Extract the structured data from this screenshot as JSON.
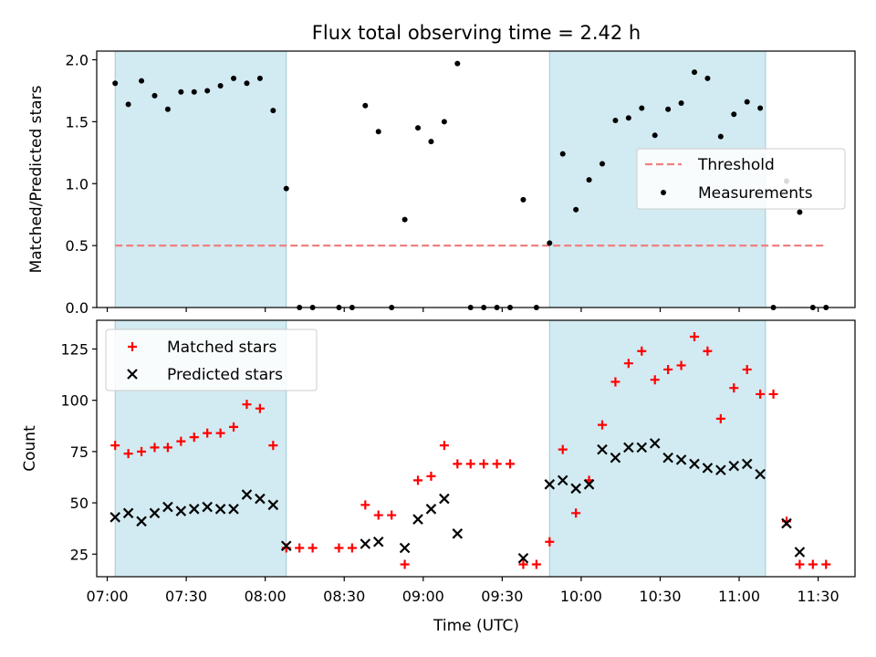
{
  "chart_data": {
    "title": "Flux total observing time = 2.42 h",
    "xlabel": "Time (UTC)",
    "x_ticks": [
      "07:00",
      "07:30",
      "08:00",
      "08:30",
      "09:00",
      "09:30",
      "10:00",
      "10:30",
      "11:00",
      "11:30"
    ],
    "x_range": [
      "06:56",
      "11:44"
    ],
    "shaded_intervals": [
      [
        "07:03",
        "08:08"
      ],
      [
        "09:48",
        "11:10"
      ]
    ],
    "shade_color": "#add8e6",
    "panels": [
      {
        "type": "scatter",
        "ylabel": "Matched/Predicted stars",
        "ylim": [
          0,
          2.07
        ],
        "y_ticks": [
          "0.0",
          "0.5",
          "1.0",
          "1.5",
          "2.0"
        ],
        "legend_position": "center-right",
        "threshold": {
          "name": "Threshold",
          "value": 0.5,
          "x_start": "07:03",
          "x_end": "11:33",
          "color": "#f08080"
        },
        "series": [
          {
            "name": "Measurements",
            "color": "#000000",
            "marker": "dot",
            "points": [
              [
                "07:03",
                1.81
              ],
              [
                "07:08",
                1.64
              ],
              [
                "07:13",
                1.83
              ],
              [
                "07:18",
                1.71
              ],
              [
                "07:23",
                1.6
              ],
              [
                "07:28",
                1.74
              ],
              [
                "07:33",
                1.74
              ],
              [
                "07:38",
                1.75
              ],
              [
                "07:43",
                1.79
              ],
              [
                "07:48",
                1.85
              ],
              [
                "07:53",
                1.81
              ],
              [
                "07:58",
                1.85
              ],
              [
                "08:03",
                1.59
              ],
              [
                "08:08",
                0.96
              ],
              [
                "08:13",
                0
              ],
              [
                "08:18",
                0
              ],
              [
                "08:28",
                0
              ],
              [
                "08:33",
                0
              ],
              [
                "08:38",
                1.63
              ],
              [
                "08:43",
                1.42
              ],
              [
                "08:48",
                0
              ],
              [
                "08:53",
                0.71
              ],
              [
                "08:58",
                1.45
              ],
              [
                "09:03",
                1.34
              ],
              [
                "09:08",
                1.5
              ],
              [
                "09:13",
                1.97
              ],
              [
                "09:18",
                0
              ],
              [
                "09:23",
                0
              ],
              [
                "09:28",
                0
              ],
              [
                "09:33",
                0
              ],
              [
                "09:38",
                0.87
              ],
              [
                "09:43",
                0
              ],
              [
                "09:48",
                0.52
              ],
              [
                "09:53",
                1.24
              ],
              [
                "09:58",
                0.79
              ],
              [
                "10:03",
                1.03
              ],
              [
                "10:08",
                1.16
              ],
              [
                "10:13",
                1.51
              ],
              [
                "10:18",
                1.53
              ],
              [
                "10:23",
                1.61
              ],
              [
                "10:28",
                1.39
              ],
              [
                "10:33",
                1.6
              ],
              [
                "10:38",
                1.65
              ],
              [
                "10:43",
                1.9
              ],
              [
                "10:48",
                1.85
              ],
              [
                "10:53",
                1.38
              ],
              [
                "10:58",
                1.56
              ],
              [
                "11:03",
                1.66
              ],
              [
                "11:08",
                1.61
              ],
              [
                "11:13",
                0
              ],
              [
                "11:18",
                1.02
              ],
              [
                "11:23",
                0.77
              ],
              [
                "11:28",
                0
              ],
              [
                "11:33",
                0
              ]
            ]
          }
        ]
      },
      {
        "type": "scatter",
        "ylabel": "Count",
        "ylim": [
          14,
          139
        ],
        "y_ticks": [
          "25",
          "50",
          "75",
          "100",
          "125"
        ],
        "legend_position": "upper-left",
        "series": [
          {
            "name": "Matched stars",
            "color": "#ff0000",
            "marker": "plus",
            "points": [
              [
                "07:03",
                78
              ],
              [
                "07:08",
                74
              ],
              [
                "07:13",
                75
              ],
              [
                "07:18",
                77
              ],
              [
                "07:23",
                77
              ],
              [
                "07:28",
                80
              ],
              [
                "07:33",
                82
              ],
              [
                "07:38",
                84
              ],
              [
                "07:43",
                84
              ],
              [
                "07:48",
                87
              ],
              [
                "07:53",
                98
              ],
              [
                "07:58",
                96
              ],
              [
                "08:03",
                78
              ],
              [
                "08:08",
                28
              ],
              [
                "08:13",
                28
              ],
              [
                "08:18",
                28
              ],
              [
                "08:28",
                28
              ],
              [
                "08:33",
                28
              ],
              [
                "08:38",
                49
              ],
              [
                "08:43",
                44
              ],
              [
                "08:48",
                44
              ],
              [
                "08:53",
                20
              ],
              [
                "08:58",
                61
              ],
              [
                "09:03",
                63
              ],
              [
                "09:08",
                78
              ],
              [
                "09:13",
                69
              ],
              [
                "09:18",
                69
              ],
              [
                "09:23",
                69
              ],
              [
                "09:28",
                69
              ],
              [
                "09:33",
                69
              ],
              [
                "09:38",
                20
              ],
              [
                "09:43",
                20
              ],
              [
                "09:48",
                31
              ],
              [
                "09:53",
                76
              ],
              [
                "09:58",
                45
              ],
              [
                "10:03",
                61
              ],
              [
                "10:08",
                88
              ],
              [
                "10:13",
                109
              ],
              [
                "10:18",
                118
              ],
              [
                "10:23",
                124
              ],
              [
                "10:28",
                110
              ],
              [
                "10:33",
                115
              ],
              [
                "10:38",
                117
              ],
              [
                "10:43",
                131
              ],
              [
                "10:48",
                124
              ],
              [
                "10:53",
                91
              ],
              [
                "10:58",
                106
              ],
              [
                "11:03",
                115
              ],
              [
                "11:08",
                103
              ],
              [
                "11:13",
                103
              ],
              [
                "11:18",
                41
              ],
              [
                "11:23",
                20
              ],
              [
                "11:28",
                20
              ],
              [
                "11:33",
                20
              ]
            ]
          },
          {
            "name": "Predicted stars",
            "color": "#000000",
            "marker": "x",
            "points": [
              [
                "07:03",
                43
              ],
              [
                "07:08",
                45
              ],
              [
                "07:13",
                41
              ],
              [
                "07:18",
                45
              ],
              [
                "07:23",
                48
              ],
              [
                "07:28",
                46
              ],
              [
                "07:33",
                47
              ],
              [
                "07:38",
                48
              ],
              [
                "07:43",
                47
              ],
              [
                "07:48",
                47
              ],
              [
                "07:53",
                54
              ],
              [
                "07:58",
                52
              ],
              [
                "08:03",
                49
              ],
              [
                "08:08",
                29
              ],
              [
                "08:38",
                30
              ],
              [
                "08:43",
                31
              ],
              [
                "08:53",
                28
              ],
              [
                "08:58",
                42
              ],
              [
                "09:03",
                47
              ],
              [
                "09:08",
                52
              ],
              [
                "09:13",
                35
              ],
              [
                "09:38",
                23
              ],
              [
                "09:48",
                59
              ],
              [
                "09:53",
                61
              ],
              [
                "09:58",
                57
              ],
              [
                "10:03",
                59
              ],
              [
                "10:08",
                76
              ],
              [
                "10:13",
                72
              ],
              [
                "10:18",
                77
              ],
              [
                "10:23",
                77
              ],
              [
                "10:28",
                79
              ],
              [
                "10:33",
                72
              ],
              [
                "10:38",
                71
              ],
              [
                "10:43",
                69
              ],
              [
                "10:48",
                67
              ],
              [
                "10:53",
                66
              ],
              [
                "10:58",
                68
              ],
              [
                "11:03",
                69
              ],
              [
                "11:08",
                64
              ],
              [
                "11:18",
                40
              ],
              [
                "11:23",
                26
              ]
            ]
          }
        ]
      }
    ]
  }
}
